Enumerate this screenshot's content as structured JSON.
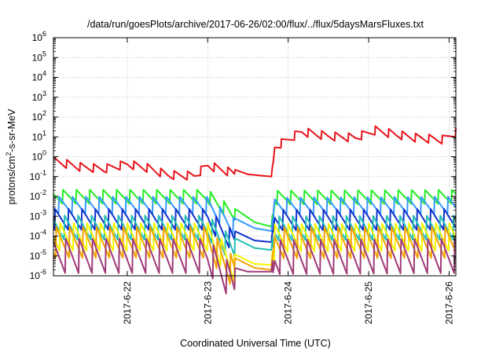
{
  "chart_data": {
    "type": "line",
    "title": "/data/run/goesPlots/archive/2017-06-26/02:00/flux/../flux/5daysMarsFluxes.txt",
    "xlabel": "Coordinated Universal Time (UTC)",
    "ylabel": {
      "base": "protons/cm",
      "sup": "2",
      "rest": "-s-sr-MeV"
    },
    "y_scale": "log",
    "ylim": [
      1e-06,
      1000000.0
    ],
    "y_ticks": [
      {
        "base": "10",
        "exp": "-6",
        "value": 1e-06
      },
      {
        "base": "10",
        "exp": "-5",
        "value": 1e-05
      },
      {
        "base": "10",
        "exp": "-4",
        "value": 0.0001
      },
      {
        "base": "10",
        "exp": "-3",
        "value": 0.001
      },
      {
        "base": "10",
        "exp": "-2",
        "value": 0.01
      },
      {
        "base": "10",
        "exp": "-1",
        "value": 0.1
      },
      {
        "base": "10",
        "exp": "0",
        "value": 1
      },
      {
        "base": "10",
        "exp": "1",
        "value": 10
      },
      {
        "base": "10",
        "exp": "2",
        "value": 100
      },
      {
        "base": "10",
        "exp": "3",
        "value": 1000
      },
      {
        "base": "10",
        "exp": "4",
        "value": 10000
      },
      {
        "base": "10",
        "exp": "5",
        "value": 100000
      },
      {
        "base": "10",
        "exp": "6",
        "value": 1000000
      }
    ],
    "x_unit": "day (UTC)",
    "xlim": [
      "2017-06-21 02:00",
      "2017-06-26 02:00"
    ],
    "x_ticks": [
      {
        "label": "2017-6-22",
        "value": "2017-06-22 00:00"
      },
      {
        "label": "2017-6-23",
        "value": "2017-06-23 00:00"
      },
      {
        "label": "2017-6-24",
        "value": "2017-06-24 00:00"
      },
      {
        "label": "2017-6-25",
        "value": "2017-06-25 00:00"
      },
      {
        "label": "2017-6-26",
        "value": "2017-06-26 00:00"
      }
    ],
    "grid": true,
    "series_style": "sawtooth",
    "series": [
      {
        "color": "#e8141c",
        "points": [
          [
            "2017-06-21 02:00",
            1.0
          ],
          [
            "2017-06-21 10:00",
            0.5
          ],
          [
            "2017-06-21 17:00",
            0.4
          ],
          [
            "2017-06-22 00:00",
            0.7
          ],
          [
            "2017-06-22 06:00",
            0.45
          ],
          [
            "2017-06-22 12:00",
            0.2
          ],
          [
            "2017-06-22 20:00",
            0.18
          ],
          [
            "2017-06-23 00:00",
            0.6
          ],
          [
            "2017-06-23 06:00",
            0.3
          ],
          [
            "2017-06-23 12:00",
            0.13
          ],
          [
            "2017-06-23 19:00",
            0.1
          ],
          [
            "2017-06-23 20:00",
            5
          ],
          [
            "2017-06-24 04:00",
            30
          ],
          [
            "2017-06-24 12:00",
            18
          ],
          [
            "2017-06-24 20:00",
            15
          ],
          [
            "2017-06-25 02:00",
            35
          ],
          [
            "2017-06-25 08:00",
            22
          ],
          [
            "2017-06-25 14:00",
            15
          ],
          [
            "2017-06-25 22:00",
            12
          ],
          [
            "2017-06-26 02:00",
            28
          ]
        ]
      },
      {
        "color": "#22ee22",
        "points": [
          [
            "2017-06-21 02:00",
            0.022
          ],
          [
            "2017-06-22 00:00",
            0.022
          ],
          [
            "2017-06-23 00:00",
            0.022
          ],
          [
            "2017-06-23 08:00",
            0.0025
          ],
          [
            "2017-06-23 14:00",
            0.0005
          ],
          [
            "2017-06-23 19:00",
            0.0003
          ],
          [
            "2017-06-23 20:00",
            0.02
          ],
          [
            "2017-06-26 02:00",
            0.022
          ]
        ]
      },
      {
        "color": "#3399ff",
        "points": [
          [
            "2017-06-21 02:00",
            0.01
          ],
          [
            "2017-06-22 00:00",
            0.01
          ],
          [
            "2017-06-23 00:00",
            0.01
          ],
          [
            "2017-06-23 08:00",
            0.0008
          ],
          [
            "2017-06-23 14:00",
            0.00025
          ],
          [
            "2017-06-23 19:00",
            0.00018
          ],
          [
            "2017-06-23 20:00",
            0.009
          ],
          [
            "2017-06-26 02:00",
            0.01
          ]
        ]
      },
      {
        "color": "#1133cc",
        "points": [
          [
            "2017-06-21 02:00",
            0.0025
          ],
          [
            "2017-06-22 00:00",
            0.0025
          ],
          [
            "2017-06-23 00:00",
            0.0025
          ],
          [
            "2017-06-23 08:00",
            0.00018
          ],
          [
            "2017-06-23 14:00",
            6e-05
          ],
          [
            "2017-06-23 19:00",
            5e-05
          ],
          [
            "2017-06-23 20:00",
            0.0023
          ],
          [
            "2017-06-26 02:00",
            0.0025
          ]
        ]
      },
      {
        "color": "#22c0b4",
        "points": [
          [
            "2017-06-21 02:00",
            0.0012
          ],
          [
            "2017-06-22 00:00",
            0.0012
          ],
          [
            "2017-06-23 00:00",
            0.0012
          ],
          [
            "2017-06-23 08:00",
            8e-05
          ],
          [
            "2017-06-23 14:00",
            2.5e-05
          ],
          [
            "2017-06-23 19:00",
            2e-05
          ],
          [
            "2017-06-23 20:00",
            0.0011
          ],
          [
            "2017-06-26 02:00",
            0.0012
          ]
        ]
      },
      {
        "color": "#f6f600",
        "points": [
          [
            "2017-06-21 02:00",
            0.00045
          ],
          [
            "2017-06-22 00:00",
            0.00045
          ],
          [
            "2017-06-23 00:00",
            0.00045
          ],
          [
            "2017-06-23 08:00",
            1.2e-05
          ],
          [
            "2017-06-23 14:00",
            4e-06
          ],
          [
            "2017-06-23 19:00",
            3.5e-06
          ],
          [
            "2017-06-23 20:00",
            0.0004
          ],
          [
            "2017-06-26 02:00",
            0.00045
          ]
        ]
      },
      {
        "color": "#f5a300",
        "points": [
          [
            "2017-06-21 02:00",
            0.0003
          ],
          [
            "2017-06-22 00:00",
            0.0003
          ],
          [
            "2017-06-23 00:00",
            0.0003
          ],
          [
            "2017-06-23 08:00",
            8e-06
          ],
          [
            "2017-06-23 14:00",
            2.5e-06
          ],
          [
            "2017-06-23 19:00",
            2e-06
          ],
          [
            "2017-06-23 20:00",
            0.00028
          ],
          [
            "2017-06-26 02:00",
            0.0003
          ]
        ]
      },
      {
        "color": "#a03a78",
        "points": [
          [
            "2017-06-21 02:00",
            8e-05
          ],
          [
            "2017-06-22 00:00",
            8e-05
          ],
          [
            "2017-06-23 00:00",
            8e-05
          ],
          [
            "2017-06-23 08:00",
            2.5e-06
          ],
          [
            "2017-06-23 12:00",
            1.6e-06
          ],
          [
            "2017-06-23 19:00",
            1.6e-06
          ],
          [
            "2017-06-23 20:00",
            7e-05
          ],
          [
            "2017-06-26 02:00",
            8e-05
          ]
        ]
      }
    ]
  }
}
